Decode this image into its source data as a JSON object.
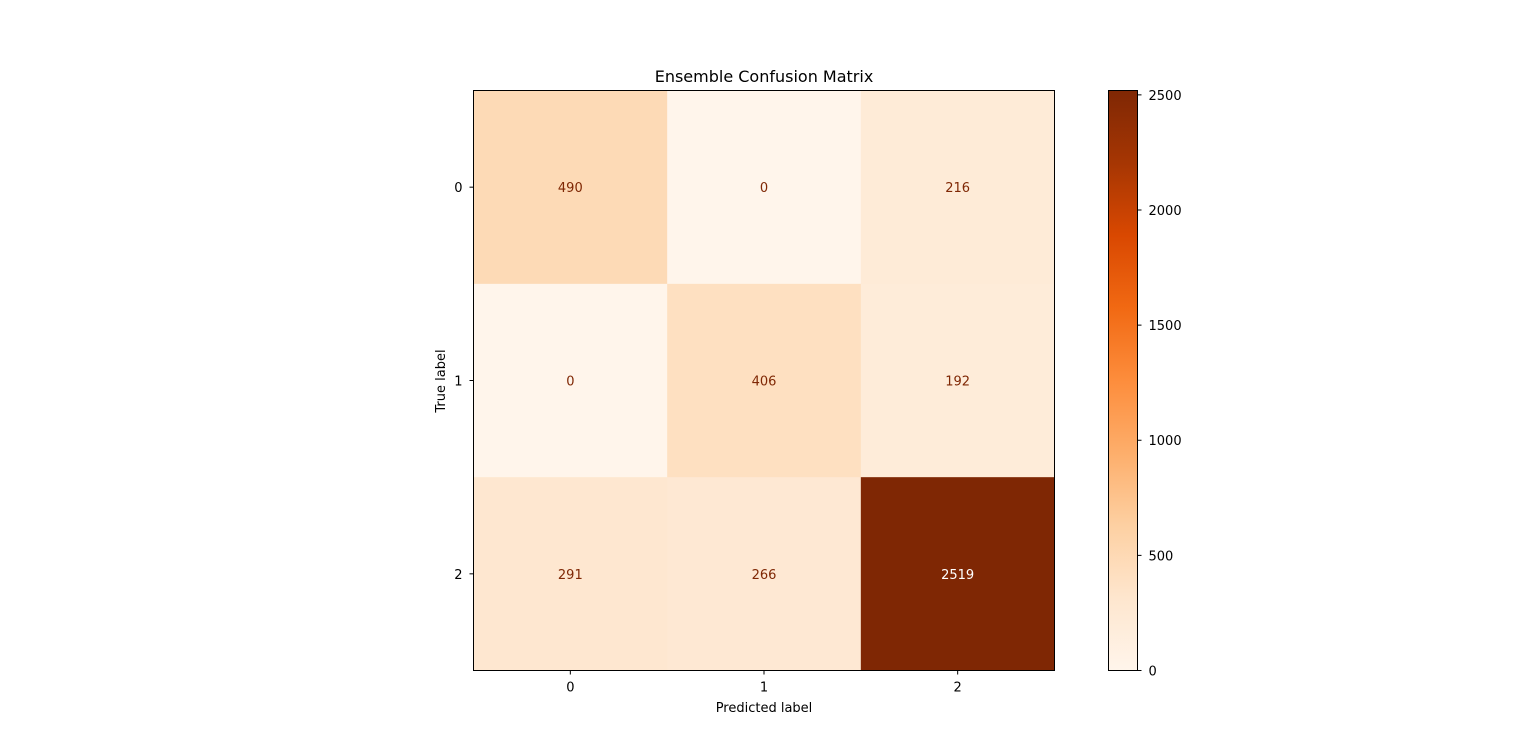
{
  "chart_data": {
    "type": "heatmap",
    "title": "Ensemble Confusion Matrix",
    "xlabel": "Predicted label",
    "ylabel": "True label",
    "x_categories": [
      "0",
      "1",
      "2"
    ],
    "y_categories": [
      "0",
      "1",
      "2"
    ],
    "values": [
      [
        490,
        0,
        216
      ],
      [
        0,
        406,
        192
      ],
      [
        291,
        266,
        2519
      ]
    ],
    "colormap": "Oranges",
    "colorbar": {
      "range": [
        0,
        2519
      ],
      "ticks": [
        0,
        500,
        1000,
        1500,
        2000,
        2500
      ]
    },
    "cell_text_color_light_bg": "#7f2704",
    "cell_text_color_dark_bg": "#ffffff"
  }
}
